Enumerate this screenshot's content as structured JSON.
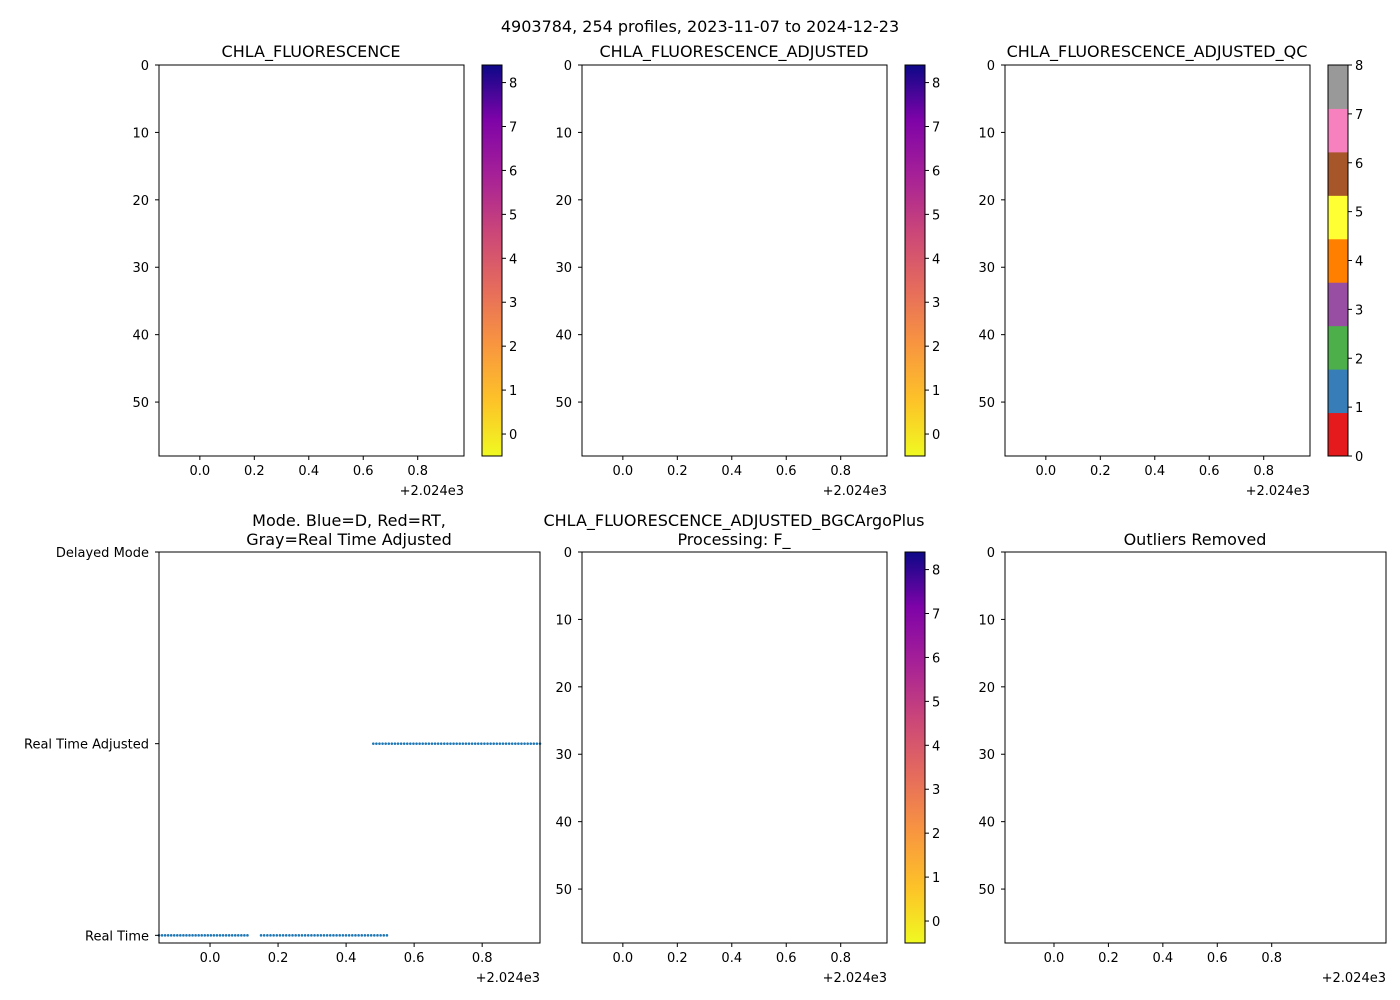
{
  "figure": {
    "suptitle": "4903784, 254 profiles, 2023-11-07 to 2024-12-23"
  },
  "chart_data": [
    {
      "id": "p1",
      "type": "heatmap",
      "title": "CHLA_FLUORESCENCE",
      "x_ticks": [
        "0.0",
        "0.2",
        "0.4",
        "0.6",
        "0.8"
      ],
      "x_tick_values": [
        0.0,
        0.2,
        0.4,
        0.6,
        0.8
      ],
      "xlim": [
        -0.15,
        0.97
      ],
      "x_offset_label": "+2.024e3",
      "y_ticks": [
        "0",
        "10",
        "20",
        "30",
        "40",
        "50"
      ],
      "y_tick_values": [
        0,
        10,
        20,
        30,
        40,
        50
      ],
      "ylim": [
        58,
        0
      ],
      "values": [],
      "colorbar": {
        "cmap": "plasma_r",
        "range": [
          -0.5,
          8.4
        ],
        "ticks": [
          "0",
          "1",
          "2",
          "3",
          "4",
          "5",
          "6",
          "7",
          "8"
        ],
        "tick_values": [
          0,
          1,
          2,
          3,
          4,
          5,
          6,
          7,
          8
        ]
      }
    },
    {
      "id": "p2",
      "type": "heatmap",
      "title": "CHLA_FLUORESCENCE_ADJUSTED",
      "x_ticks": [
        "0.0",
        "0.2",
        "0.4",
        "0.6",
        "0.8"
      ],
      "x_tick_values": [
        0.0,
        0.2,
        0.4,
        0.6,
        0.8
      ],
      "xlim": [
        -0.15,
        0.97
      ],
      "x_offset_label": "+2.024e3",
      "y_ticks": [
        "0",
        "10",
        "20",
        "30",
        "40",
        "50"
      ],
      "y_tick_values": [
        0,
        10,
        20,
        30,
        40,
        50
      ],
      "ylim": [
        58,
        0
      ],
      "values": [],
      "colorbar": {
        "cmap": "plasma_r",
        "range": [
          -0.5,
          8.4
        ],
        "ticks": [
          "0",
          "1",
          "2",
          "3",
          "4",
          "5",
          "6",
          "7",
          "8"
        ],
        "tick_values": [
          0,
          1,
          2,
          3,
          4,
          5,
          6,
          7,
          8
        ]
      }
    },
    {
      "id": "p3",
      "type": "heatmap",
      "title": "CHLA_FLUORESCENCE_ADJUSTED_QC",
      "x_ticks": [
        "0.0",
        "0.2",
        "0.4",
        "0.6",
        "0.8"
      ],
      "x_tick_values": [
        0.0,
        0.2,
        0.4,
        0.6,
        0.8
      ],
      "xlim": [
        -0.15,
        0.97
      ],
      "x_offset_label": "+2.024e3",
      "y_ticks": [
        "0",
        "10",
        "20",
        "30",
        "40",
        "50"
      ],
      "y_tick_values": [
        0,
        10,
        20,
        30,
        40,
        50
      ],
      "ylim": [
        58,
        0
      ],
      "values": [],
      "colorbar": {
        "cmap": "qc_categorical",
        "range": [
          0,
          8
        ],
        "ticks": [
          "0",
          "1",
          "2",
          "3",
          "4",
          "5",
          "6",
          "7",
          "8"
        ],
        "tick_values": [
          0,
          1,
          2,
          3,
          4,
          5,
          6,
          7,
          8
        ],
        "segment_colors": [
          "#e41a1c",
          "#377eb8",
          "#4daf4a",
          "#984ea3",
          "#ff7f00",
          "#ffff33",
          "#a65628",
          "#f781bf",
          "#999999"
        ]
      }
    },
    {
      "id": "p4",
      "type": "scatter",
      "title": "Mode. Blue=D, Red=RT,",
      "title_line2": "Gray=Real Time Adjusted",
      "x_ticks": [
        "0.0",
        "0.2",
        "0.4",
        "0.6",
        "0.8"
      ],
      "x_tick_values": [
        0.0,
        0.2,
        0.4,
        0.6,
        0.8
      ],
      "xlim": [
        -0.15,
        0.97
      ],
      "x_offset_label": "+2.024e3",
      "y_categories": [
        "Delayed Mode",
        "Real Time Adjusted",
        "Real Time"
      ],
      "y_category_values": [
        2,
        1,
        0
      ],
      "ylim": [
        -0.04,
        2.0
      ],
      "marker_color": "#1f77b4",
      "series": [
        {
          "name": "Real Time",
          "y": 0,
          "x_start": -0.15,
          "x_end": 0.11,
          "n": 30
        },
        {
          "name": "Real Time",
          "y": 0,
          "x_start": 0.15,
          "x_end": 0.52,
          "n": 41
        },
        {
          "name": "Real Time Adjusted",
          "y": 1,
          "x_start": 0.48,
          "x_end": 0.97,
          "n": 55
        }
      ]
    },
    {
      "id": "p5",
      "type": "heatmap",
      "title": "CHLA_FLUORESCENCE_ADJUSTED_BGCArgoPlus",
      "title_line2": "Processing: F_",
      "x_ticks": [
        "0.0",
        "0.2",
        "0.4",
        "0.6",
        "0.8"
      ],
      "x_tick_values": [
        0.0,
        0.2,
        0.4,
        0.6,
        0.8
      ],
      "xlim": [
        -0.15,
        0.97
      ],
      "x_offset_label": "+2.024e3",
      "y_ticks": [
        "0",
        "10",
        "20",
        "30",
        "40",
        "50"
      ],
      "y_tick_values": [
        0,
        10,
        20,
        30,
        40,
        50
      ],
      "ylim": [
        58,
        0
      ],
      "values": [],
      "colorbar": {
        "cmap": "plasma_r",
        "range": [
          -0.5,
          8.4
        ],
        "ticks": [
          "0",
          "1",
          "2",
          "3",
          "4",
          "5",
          "6",
          "7",
          "8"
        ],
        "tick_values": [
          0,
          1,
          2,
          3,
          4,
          5,
          6,
          7,
          8
        ]
      }
    },
    {
      "id": "p6",
      "type": "heatmap",
      "title": "Outliers Removed",
      "x_ticks": [
        "0.0",
        "0.2",
        "0.4",
        "0.6",
        "0.8"
      ],
      "x_tick_values": [
        0.0,
        0.2,
        0.4,
        0.6,
        0.8
      ],
      "xlim": [
        -0.18,
        1.22
      ],
      "x_offset_label": "+2.024e3",
      "y_ticks": [
        "0",
        "10",
        "20",
        "30",
        "40",
        "50"
      ],
      "y_tick_values": [
        0,
        10,
        20,
        30,
        40,
        50
      ],
      "ylim": [
        58,
        0
      ],
      "values": []
    }
  ]
}
